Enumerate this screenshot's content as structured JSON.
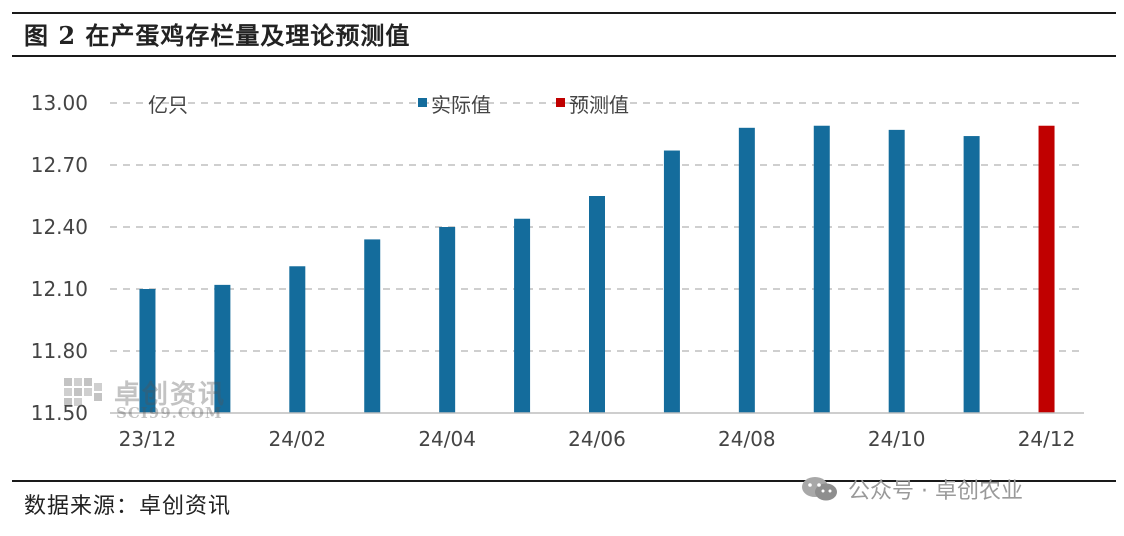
{
  "title": "图 2  在产蛋鸡存栏量及理论预测值",
  "source": "数据来源：卓创资讯",
  "watermark": {
    "cn": "卓创资讯",
    "en": "SCI99.COM"
  },
  "wechat": {
    "text": "公众号 · 卓创农业",
    "icon": "wechat-icon"
  },
  "colors": {
    "actual": "#146C9C",
    "forecast": "#C00000",
    "grid": "#cfcfcf",
    "axis": "#bdbdbd"
  },
  "chart_data": {
    "type": "bar",
    "unit_label": "亿只",
    "categories": [
      "23/12",
      "24/01",
      "24/02",
      "24/03",
      "24/04",
      "24/05",
      "24/06",
      "24/07",
      "24/08",
      "24/09",
      "24/10",
      "24/11",
      "24/12"
    ],
    "tick_labels": [
      "23/12",
      "24/02",
      "24/04",
      "24/06",
      "24/08",
      "24/10",
      "24/12"
    ],
    "series": [
      {
        "name": "实际值",
        "values": [
          12.1,
          12.12,
          12.21,
          12.34,
          12.4,
          12.44,
          12.55,
          12.77,
          12.88,
          12.89,
          12.87,
          12.84,
          null
        ]
      },
      {
        "name": "预测值",
        "values": [
          null,
          null,
          null,
          null,
          null,
          null,
          null,
          null,
          null,
          null,
          null,
          null,
          12.89
        ]
      }
    ],
    "ylim": [
      11.5,
      13.0
    ],
    "yticks": [
      "11.50",
      "11.80",
      "12.10",
      "12.40",
      "12.70",
      "13.00"
    ],
    "grid": true,
    "legend_position": "top"
  }
}
